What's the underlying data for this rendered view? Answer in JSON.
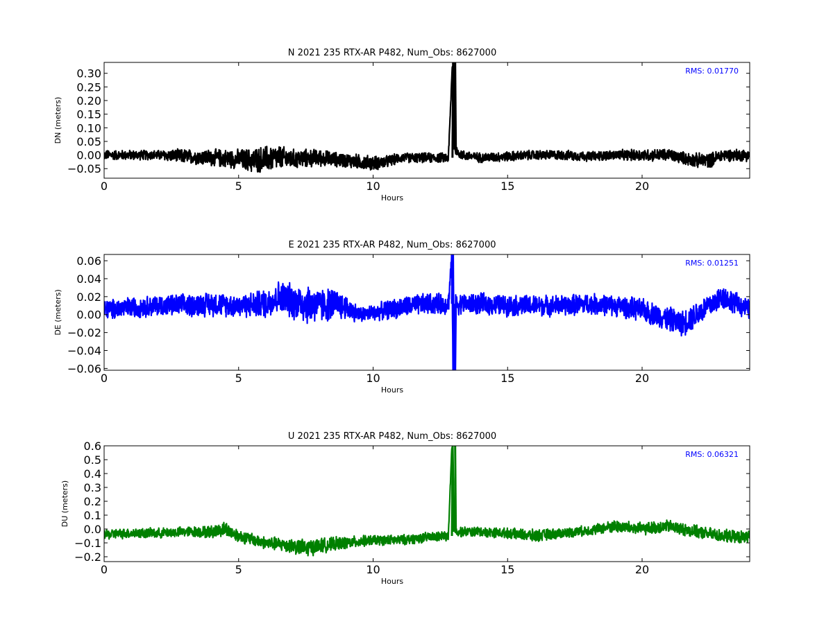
{
  "chart_data": [
    {
      "type": "line",
      "title": "N 2021 235 RTX-AR  P482, Num_Obs: 8627000",
      "xlabel": "Hours",
      "ylabel": "DN (meters)",
      "rms_label": "RMS:  0.01770",
      "color": "#000000",
      "xlim": [
        0,
        24
      ],
      "ylim": [
        -0.085,
        0.34
      ],
      "xticks": [
        0,
        5,
        10,
        15,
        20
      ],
      "yticks": [
        -0.05,
        0.0,
        0.05,
        0.1,
        0.15,
        0.2,
        0.25,
        0.3
      ],
      "ytick_labels": [
        "−0.05",
        "0.00",
        "0.05",
        "0.10",
        "0.15",
        "0.20",
        "0.25",
        "0.30"
      ],
      "series": [
        {
          "x": [
            0,
            1,
            2,
            3,
            3.5,
            4,
            5,
            5.5,
            6,
            6.5,
            7,
            8,
            8.5,
            9,
            10,
            10.5,
            11,
            12,
            12.8,
            12.95,
            13.05,
            13.3,
            14,
            15,
            16,
            17,
            18,
            19,
            20,
            21,
            21.5,
            22,
            22.5,
            23,
            24
          ],
          "y": [
            0.0,
            0.0,
            0.0,
            -0.005,
            -0.008,
            -0.01,
            -0.015,
            -0.02,
            -0.015,
            -0.01,
            -0.015,
            -0.01,
            -0.015,
            -0.02,
            -0.03,
            -0.025,
            -0.01,
            -0.01,
            -0.01,
            0.34,
            0.02,
            0.0,
            -0.01,
            -0.005,
            0.0,
            0.0,
            -0.005,
            0.0,
            0.0,
            0.0,
            -0.01,
            -0.02,
            -0.02,
            0.0,
            0.0
          ],
          "spread": [
            0.02,
            0.02,
            0.02,
            0.03,
            0.03,
            0.035,
            0.04,
            0.05,
            0.055,
            0.05,
            0.04,
            0.035,
            0.03,
            0.03,
            0.03,
            0.025,
            0.02,
            0.02,
            0.02,
            0.02,
            0.02,
            0.02,
            0.02,
            0.02,
            0.02,
            0.02,
            0.02,
            0.02,
            0.025,
            0.025,
            0.025,
            0.03,
            0.03,
            0.025,
            0.025
          ]
        }
      ]
    },
    {
      "type": "line",
      "title": "E 2021 235 RTX-AR  P482, Num_Obs: 8627000",
      "xlabel": "Hours",
      "ylabel": "DE (meters)",
      "rms_label": "RMS:  0.01251",
      "color": "#0000ff",
      "xlim": [
        0,
        24
      ],
      "ylim": [
        -0.062,
        0.067
      ],
      "xticks": [
        0,
        5,
        10,
        15,
        20
      ],
      "yticks": [
        -0.06,
        -0.04,
        -0.02,
        0.0,
        0.02,
        0.04,
        0.06
      ],
      "ytick_labels": [
        "−0.06",
        "−0.04",
        "−0.02",
        "0.00",
        "0.02",
        "0.04",
        "0.06"
      ],
      "series": [
        {
          "x": [
            0,
            1,
            2,
            3,
            4,
            5,
            6,
            6.5,
            7,
            7.5,
            8,
            8.5,
            9,
            9.5,
            10,
            11,
            12,
            12.8,
            12.93,
            12.97,
            13.05,
            14,
            15,
            16,
            17,
            18,
            19,
            20,
            21,
            21.5,
            22,
            23,
            24
          ],
          "y": [
            0.005,
            0.008,
            0.01,
            0.01,
            0.012,
            0.01,
            0.012,
            0.02,
            0.015,
            0.012,
            0.01,
            0.012,
            0.008,
            0.0,
            0.002,
            0.008,
            0.012,
            0.012,
            0.067,
            -0.062,
            0.012,
            0.012,
            0.01,
            0.01,
            0.01,
            0.012,
            0.01,
            0.005,
            -0.005,
            -0.01,
            0.0,
            0.02,
            0.005
          ],
          "spread": [
            0.012,
            0.013,
            0.013,
            0.014,
            0.015,
            0.014,
            0.018,
            0.02,
            0.022,
            0.025,
            0.022,
            0.02,
            0.015,
            0.01,
            0.01,
            0.013,
            0.013,
            0.013,
            0.013,
            0.013,
            0.013,
            0.013,
            0.013,
            0.013,
            0.013,
            0.013,
            0.013,
            0.014,
            0.015,
            0.016,
            0.016,
            0.015,
            0.012
          ]
        }
      ]
    },
    {
      "type": "line",
      "title": "U 2021 235 RTX-AR  P482, Num_Obs: 8627000",
      "xlabel": "Hours",
      "ylabel": "DU (meters)",
      "rms_label": "RMS:  0.06321",
      "color": "#008000",
      "xlim": [
        0,
        24
      ],
      "ylim": [
        -0.235,
        0.6
      ],
      "xticks": [
        0,
        5,
        10,
        15,
        20
      ],
      "yticks": [
        -0.2,
        -0.1,
        0.0,
        0.1,
        0.2,
        0.3,
        0.4,
        0.5,
        0.6
      ],
      "ytick_labels": [
        "−0.2",
        "−0.1",
        "0.0",
        "0.1",
        "0.2",
        "0.3",
        "0.4",
        "0.5",
        "0.6"
      ],
      "series": [
        {
          "x": [
            0,
            1,
            2,
            3,
            4,
            4.5,
            5,
            6,
            7,
            7.5,
            8,
            9,
            10,
            11,
            12,
            12.8,
            12.93,
            13.05,
            14,
            15,
            16,
            17,
            18,
            19,
            20,
            21,
            22,
            23,
            24
          ],
          "y": [
            -0.04,
            -0.03,
            -0.03,
            -0.02,
            -0.02,
            0.0,
            -0.05,
            -0.1,
            -0.12,
            -0.14,
            -0.12,
            -0.1,
            -0.08,
            -0.08,
            -0.06,
            -0.05,
            0.6,
            -0.02,
            -0.02,
            -0.03,
            -0.05,
            -0.03,
            -0.01,
            0.02,
            0.0,
            0.02,
            -0.02,
            -0.05,
            -0.06
          ],
          "spread": [
            0.04,
            0.04,
            0.04,
            0.04,
            0.05,
            0.06,
            0.05,
            0.05,
            0.06,
            0.07,
            0.06,
            0.05,
            0.04,
            0.04,
            0.04,
            0.04,
            0.04,
            0.04,
            0.04,
            0.04,
            0.05,
            0.04,
            0.04,
            0.05,
            0.05,
            0.05,
            0.05,
            0.05,
            0.05
          ]
        }
      ]
    }
  ]
}
